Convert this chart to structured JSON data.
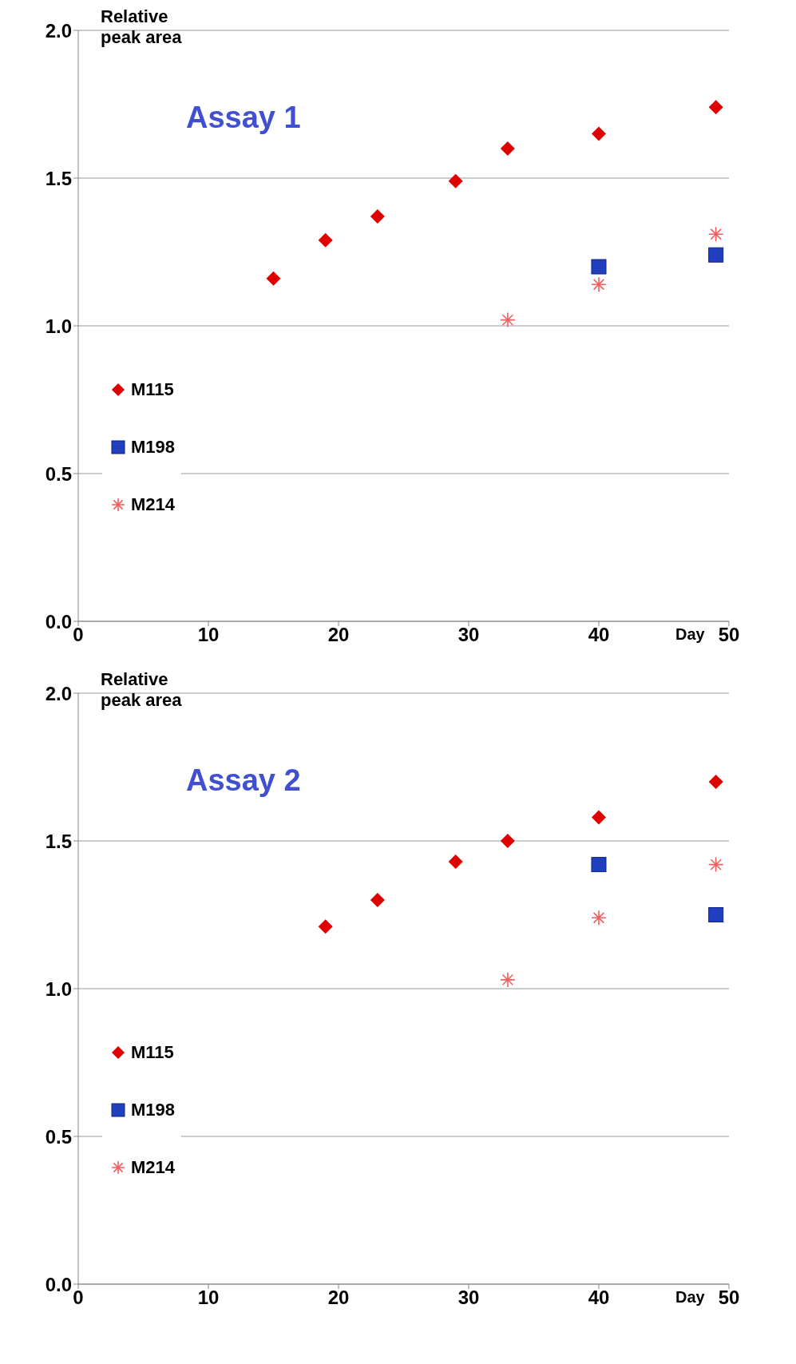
{
  "chart_data": [
    {
      "type": "scatter",
      "ylabel": "Relative peak area",
      "xlabel": "Day",
      "annotations": [
        "Assay 1"
      ],
      "xlim": [
        0,
        50
      ],
      "xticks": [
        0,
        10,
        20,
        30,
        40,
        50
      ],
      "ylim": [
        0,
        2
      ],
      "yticks": [
        {
          "value": 0,
          "label": "0.0"
        },
        {
          "value": 0.5,
          "label": "0.5"
        },
        {
          "value": 1,
          "label": "1.0"
        },
        {
          "value": 1.5,
          "label": "1.5"
        },
        {
          "value": 2,
          "label": "2.0"
        }
      ],
      "grid": "y",
      "legend": "left",
      "series": [
        {
          "name": "M115",
          "color": "#e00000",
          "marker": "diamond",
          "x": [
            15,
            19,
            23,
            29,
            33,
            40,
            49
          ],
          "values": [
            1.16,
            1.29,
            1.37,
            1.49,
            1.6,
            1.65,
            1.74
          ]
        },
        {
          "name": "M198",
          "color": "#1f3fbf",
          "marker": "square",
          "x": [
            40,
            49
          ],
          "values": [
            1.2,
            1.24
          ]
        },
        {
          "name": "M214",
          "color": "#f06060",
          "marker": "cross",
          "x": [
            33,
            40,
            49
          ],
          "values": [
            1.02,
            1.14,
            1.31
          ]
        }
      ]
    },
    {
      "type": "scatter",
      "ylabel": "Relative peak area",
      "xlabel": "Day",
      "annotations": [
        "Assay 2"
      ],
      "xlim": [
        0,
        50
      ],
      "xticks": [
        0,
        10,
        20,
        30,
        40,
        50
      ],
      "ylim": [
        0,
        2
      ],
      "yticks": [
        {
          "value": 0,
          "label": "0.0"
        },
        {
          "value": 0.5,
          "label": "0.5"
        },
        {
          "value": 1,
          "label": "1.0"
        },
        {
          "value": 1.5,
          "label": "1.5"
        },
        {
          "value": 2,
          "label": "2.0"
        }
      ],
      "grid": "y",
      "legend": "left",
      "series": [
        {
          "name": "M115",
          "color": "#e00000",
          "marker": "diamond",
          "x": [
            19,
            23,
            29,
            33,
            40,
            49
          ],
          "values": [
            1.21,
            1.3,
            1.43,
            1.5,
            1.58,
            1.7
          ]
        },
        {
          "name": "M198",
          "color": "#1f3fbf",
          "marker": "square",
          "x": [
            40,
            49
          ],
          "values": [
            1.42,
            1.25
          ]
        },
        {
          "name": "M214",
          "color": "#f06060",
          "marker": "cross",
          "x": [
            33,
            40,
            49
          ],
          "values": [
            1.03,
            1.24,
            1.42
          ]
        }
      ]
    }
  ]
}
